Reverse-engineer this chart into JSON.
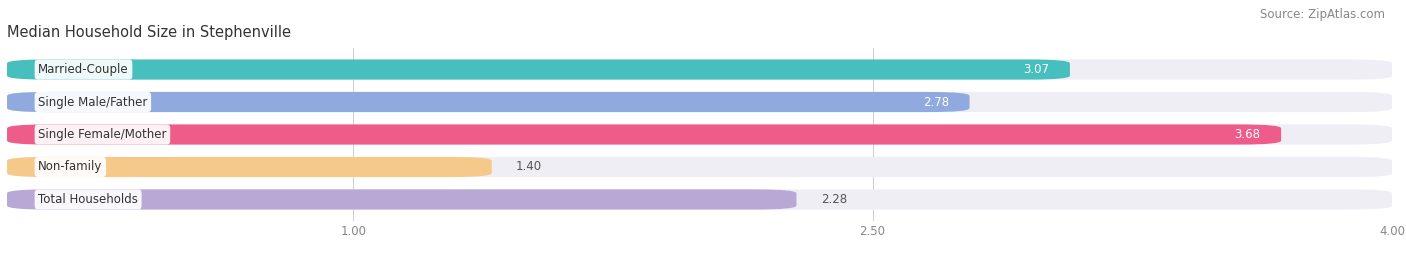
{
  "title": "Median Household Size in Stephenville",
  "source": "Source: ZipAtlas.com",
  "categories": [
    "Married-Couple",
    "Single Male/Father",
    "Single Female/Mother",
    "Non-family",
    "Total Households"
  ],
  "values": [
    3.07,
    2.78,
    3.68,
    1.4,
    2.28
  ],
  "bar_colors": [
    "#47BFBF",
    "#90AADF",
    "#EE5C8A",
    "#F5C98A",
    "#B8A8D5"
  ],
  "bar_bg_color": "#EEEEF4",
  "xlim_min": 0.0,
  "xlim_max": 4.0,
  "xticks": [
    1.0,
    2.5,
    4.0
  ],
  "title_fontsize": 10.5,
  "source_fontsize": 8.5,
  "bar_label_fontsize": 8.5,
  "category_fontsize": 8.5,
  "bar_height": 0.62,
  "bar_gap": 0.38,
  "background_color": "#FFFFFF",
  "value_inside_threshold": 2.5,
  "value_label_inside_color": "#FFFFFF",
  "value_label_outside_color": "#555555"
}
